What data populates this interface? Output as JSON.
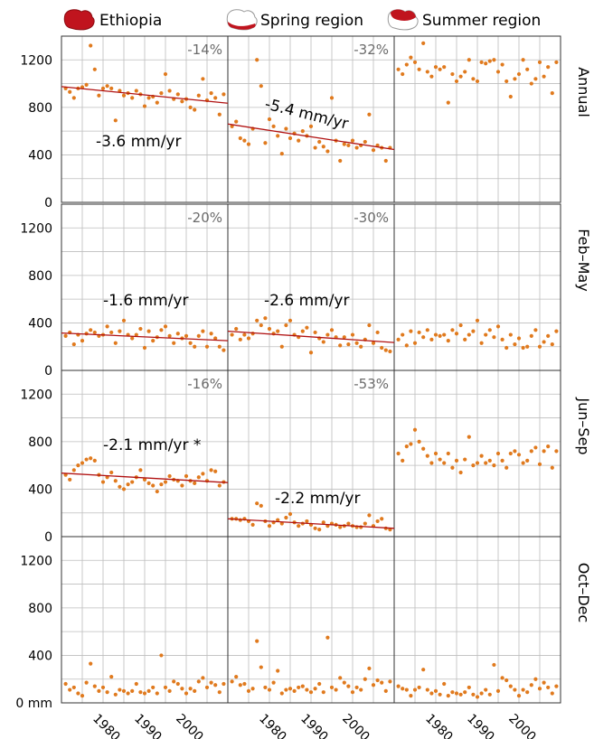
{
  "legend": [
    {
      "label": "Ethiopia",
      "icon": "ethiopia-map-icon"
    },
    {
      "label": "Spring region",
      "icon": "spring-region-map-icon"
    },
    {
      "label": "Summer region",
      "icon": "summer-region-map-icon"
    }
  ],
  "colors": {
    "points": "#e07a1e",
    "trend": "#b01010",
    "grid": "#bdbdbd",
    "map_fill": "#c0141e"
  },
  "chart_data": {
    "type": "scatter",
    "y_unit": "mm",
    "ylim": [
      0,
      1400
    ],
    "yticks": [
      "1200",
      "800",
      "400",
      "0"
    ],
    "bottom_ytick": "0 mm",
    "xlim": [
      1970,
      2010
    ],
    "xticks": [
      "1980",
      "1990",
      "2000"
    ],
    "grid": true,
    "columns": [
      "Ethiopia",
      "Spring region",
      "Summer region"
    ],
    "rows": [
      "Annual",
      "Feb–May",
      "Jun–Sep",
      "Oct–Dec"
    ],
    "panels": [
      {
        "row": "Annual",
        "column": "Ethiopia",
        "change": "-14%",
        "trend_label": "-3.6 mm/yr",
        "trend": [
          [
            1970,
            975
          ],
          [
            2010,
            835
          ]
        ],
        "values": [
          960,
          930,
          880,
          960,
          970,
          990,
          1320,
          1120,
          900,
          960,
          980,
          960,
          690,
          940,
          900,
          920,
          880,
          940,
          910,
          810,
          880,
          890,
          840,
          920,
          1080,
          940,
          870,
          910,
          850,
          870,
          800,
          780,
          900,
          1040,
          860,
          920,
          880,
          740,
          910
        ]
      },
      {
        "row": "Annual",
        "column": "Spring region",
        "change": "-32%",
        "trend_label": "-5.4 mm/yr",
        "trend": [
          [
            1970,
            660
          ],
          [
            2010,
            445
          ]
        ],
        "values": [
          640,
          680,
          540,
          520,
          490,
          620,
          1200,
          980,
          500,
          700,
          640,
          560,
          410,
          620,
          540,
          580,
          520,
          600,
          560,
          640,
          460,
          510,
          470,
          430,
          880,
          520,
          350,
          490,
          480,
          520,
          460,
          480,
          510,
          740,
          440,
          480,
          460,
          350,
          460
        ]
      },
      {
        "row": "Annual",
        "column": "Summer region",
        "values": [
          1120,
          1080,
          1160,
          1220,
          1180,
          1120,
          1340,
          1100,
          1060,
          1140,
          1120,
          1140,
          840,
          1080,
          1020,
          1060,
          1100,
          1200,
          1040,
          1020,
          1180,
          1170,
          1190,
          1200,
          1100,
          1160,
          1020,
          890,
          1040,
          1080,
          1200,
          1120,
          1000,
          1040,
          1180,
          1060,
          1140,
          920,
          1180
        ]
      },
      {
        "row": "Feb–May",
        "column": "Ethiopia",
        "change": "-20%",
        "trend_label": "-1.6 mm/yr",
        "trend": [
          [
            1970,
            315
          ],
          [
            2010,
            250
          ]
        ],
        "values": [
          290,
          320,
          220,
          300,
          250,
          310,
          340,
          320,
          290,
          300,
          370,
          320,
          230,
          330,
          420,
          300,
          270,
          300,
          350,
          190,
          330,
          250,
          280,
          340,
          370,
          290,
          230,
          310,
          270,
          290,
          230,
          200,
          290,
          330,
          200,
          310,
          270,
          200,
          170
        ]
      },
      {
        "row": "Feb–May",
        "column": "Spring region",
        "change": "-30%",
        "trend_label": "-2.6 mm/yr",
        "trend": [
          [
            1970,
            330
          ],
          [
            2010,
            235
          ]
        ],
        "values": [
          300,
          350,
          260,
          300,
          270,
          310,
          420,
          380,
          440,
          350,
          310,
          330,
          200,
          380,
          420,
          300,
          280,
          330,
          360,
          150,
          320,
          270,
          240,
          300,
          340,
          280,
          210,
          280,
          220,
          300,
          230,
          200,
          260,
          380,
          230,
          320,
          190,
          170,
          160
        ]
      },
      {
        "row": "Feb–May",
        "column": "Summer region",
        "values": [
          260,
          300,
          210,
          330,
          230,
          320,
          280,
          340,
          260,
          300,
          290,
          300,
          250,
          340,
          310,
          380,
          260,
          300,
          330,
          420,
          230,
          300,
          340,
          280,
          370,
          260,
          190,
          300,
          220,
          270,
          190,
          200,
          290,
          340,
          200,
          240,
          290,
          220,
          330
        ]
      },
      {
        "row": "Jun–Sep",
        "column": "Ethiopia",
        "change": "-16%",
        "trend_label": "-2.1 mm/yr *",
        "trend": [
          [
            1970,
            535
          ],
          [
            2010,
            455
          ]
        ],
        "values": [
          520,
          480,
          560,
          600,
          620,
          650,
          660,
          640,
          520,
          460,
          500,
          540,
          470,
          420,
          400,
          440,
          460,
          500,
          560,
          480,
          450,
          430,
          380,
          440,
          460,
          510,
          480,
          470,
          430,
          510,
          470,
          450,
          500,
          530,
          470,
          560,
          550,
          430,
          460
        ]
      },
      {
        "row": "Jun–Sep",
        "column": "Spring region",
        "change": "-53%",
        "trend_label": "-2.2 mm/yr",
        "trend": [
          [
            1970,
            150
          ],
          [
            2010,
            70
          ]
        ],
        "values": [
          150,
          150,
          140,
          150,
          130,
          100,
          280,
          260,
          130,
          90,
          120,
          140,
          110,
          160,
          190,
          120,
          90,
          110,
          130,
          100,
          70,
          60,
          120,
          90,
          110,
          100,
          80,
          90,
          110,
          90,
          80,
          80,
          110,
          180,
          90,
          130,
          150,
          70,
          60
        ]
      },
      {
        "row": "Jun–Sep",
        "column": "Summer region",
        "values": [
          700,
          640,
          760,
          780,
          900,
          800,
          740,
          680,
          620,
          700,
          650,
          620,
          700,
          580,
          640,
          540,
          650,
          840,
          600,
          620,
          680,
          620,
          640,
          600,
          700,
          640,
          580,
          700,
          720,
          690,
          620,
          640,
          720,
          750,
          610,
          720,
          760,
          580,
          720
        ]
      },
      {
        "row": "Oct–Dec",
        "column": "Ethiopia",
        "values": [
          160,
          110,
          130,
          80,
          60,
          170,
          330,
          140,
          100,
          130,
          90,
          220,
          70,
          110,
          100,
          80,
          100,
          160,
          90,
          80,
          100,
          130,
          80,
          400,
          130,
          100,
          180,
          160,
          120,
          80,
          120,
          100,
          180,
          210,
          130,
          170,
          150,
          90,
          160
        ]
      },
      {
        "row": "Oct–Dec",
        "column": "Spring region",
        "values": [
          180,
          220,
          150,
          160,
          100,
          120,
          520,
          300,
          130,
          110,
          170,
          270,
          80,
          110,
          120,
          100,
          130,
          140,
          110,
          90,
          120,
          160,
          90,
          550,
          130,
          110,
          210,
          170,
          140,
          90,
          130,
          110,
          200,
          290,
          150,
          190,
          170,
          100,
          180
        ]
      },
      {
        "row": "Oct–Dec",
        "column": "Summer region",
        "values": [
          140,
          120,
          110,
          60,
          110,
          130,
          280,
          110,
          80,
          100,
          70,
          160,
          60,
          90,
          80,
          70,
          90,
          130,
          70,
          50,
          80,
          110,
          70,
          320,
          100,
          210,
          190,
          140,
          110,
          60,
          110,
          90,
          150,
          200,
          120,
          170,
          130,
          80,
          140
        ]
      }
    ]
  }
}
